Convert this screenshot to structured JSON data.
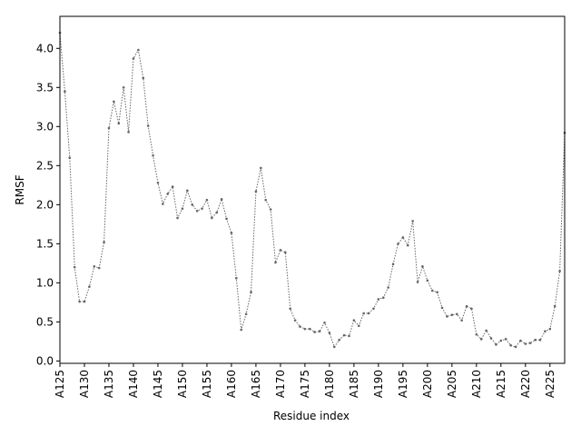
{
  "chart_data": {
    "type": "line",
    "x_label": "Residue index",
    "y_label": "RMSF",
    "categories": [
      "A125",
      null,
      null,
      null,
      null,
      "A130",
      null,
      null,
      null,
      null,
      "A135",
      null,
      null,
      null,
      null,
      "A140",
      null,
      null,
      null,
      null,
      "A145",
      null,
      null,
      null,
      null,
      "A150",
      null,
      null,
      null,
      null,
      "A155",
      null,
      null,
      null,
      null,
      "A160",
      null,
      null,
      null,
      null,
      "A165",
      null,
      null,
      null,
      null,
      "A170",
      null,
      null,
      null,
      null,
      "A175",
      null,
      null,
      null,
      null,
      "A180",
      null,
      null,
      null,
      null,
      "A185",
      null,
      null,
      null,
      null,
      "A190",
      null,
      null,
      null,
      null,
      "A195",
      null,
      null,
      null,
      null,
      "A200",
      null,
      null,
      null,
      null,
      "A205",
      null,
      null,
      null,
      null,
      "A210",
      null,
      null,
      null,
      null,
      "A215",
      null,
      null,
      null,
      null,
      "A220",
      null,
      null,
      null,
      null,
      "A225",
      null,
      null,
      null
    ],
    "values": [
      4.2,
      3.45,
      2.6,
      1.2,
      0.76,
      0.76,
      0.95,
      1.21,
      1.19,
      1.52,
      2.98,
      3.32,
      3.04,
      3.5,
      2.93,
      3.87,
      3.98,
      3.62,
      3.01,
      2.63,
      2.28,
      2.01,
      2.14,
      2.23,
      1.83,
      1.95,
      2.18,
      2.0,
      1.92,
      1.95,
      2.06,
      1.83,
      1.9,
      2.07,
      1.82,
      1.64,
      1.06,
      0.4,
      0.6,
      0.88,
      2.17,
      2.47,
      2.06,
      1.94,
      1.26,
      1.42,
      1.39,
      0.67,
      0.52,
      0.44,
      0.41,
      0.41,
      0.37,
      0.38,
      0.49,
      0.36,
      0.18,
      0.27,
      0.33,
      0.32,
      0.52,
      0.45,
      0.61,
      0.61,
      0.67,
      0.79,
      0.81,
      0.94,
      1.24,
      1.5,
      1.58,
      1.48,
      1.79,
      1.01,
      1.21,
      1.03,
      0.9,
      0.88,
      0.68,
      0.57,
      0.59,
      0.6,
      0.52,
      0.7,
      0.67,
      0.34,
      0.28,
      0.39,
      0.29,
      0.21,
      0.26,
      0.28,
      0.2,
      0.18,
      0.26,
      0.22,
      0.23,
      0.27,
      0.27,
      0.38,
      0.41,
      0.7,
      1.15,
      2.92
    ],
    "color": "#666666",
    "ylim": [
      -0.03,
      4.41
    ],
    "yticks": [
      {
        "value": 0,
        "label": "0.0"
      },
      0.5,
      {
        "value": 1,
        "label": "1.0"
      },
      1.5,
      {
        "value": 2,
        "label": "2.0"
      },
      2.5,
      {
        "value": 3,
        "label": "3.0"
      },
      3.5,
      {
        "value": 4,
        "label": "4.0"
      }
    ]
  }
}
